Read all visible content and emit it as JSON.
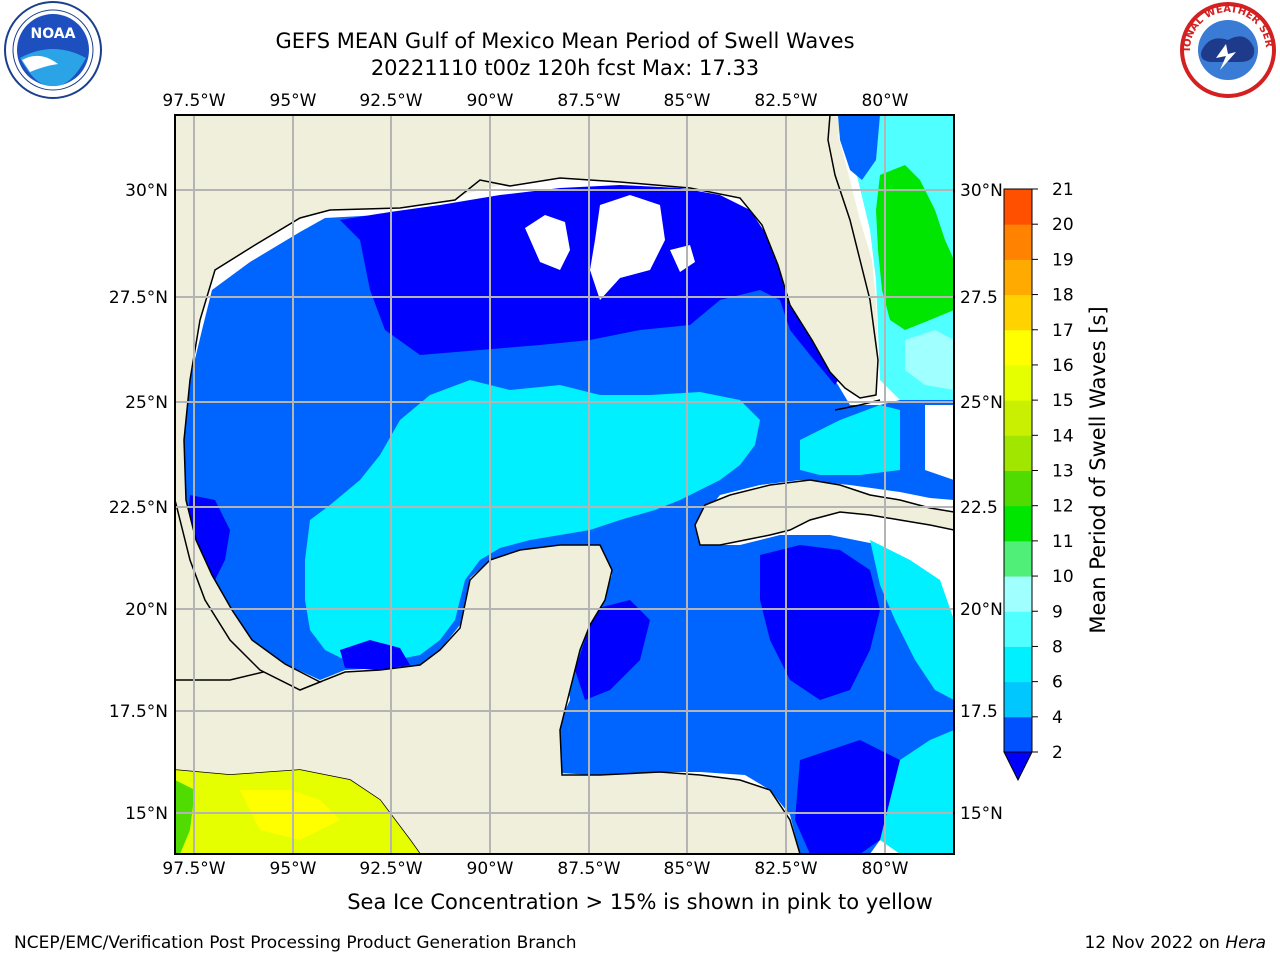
{
  "title": {
    "line1": "GEFS MEAN Gulf of Mexico Mean Period of Swell Waves",
    "line2": "20221110 t00z 120h fcst   Max: 17.33"
  },
  "axes": {
    "lon_labels": [
      "97.5°W",
      "95°W",
      "92.5°W",
      "90°W",
      "87.5°W",
      "85°W",
      "82.5°W",
      "80°W"
    ],
    "lat_labels": [
      "30°N",
      "27.5°N",
      "25°N",
      "22.5°N",
      "20°N",
      "17.5°N",
      "15°N"
    ],
    "lat_labels_right": [
      "30°N",
      "27.5",
      "25°N",
      "22.5",
      "20°N",
      "17.5",
      "15°N"
    ]
  },
  "colorbar": {
    "title": "Mean Period of Swell Waves [s]",
    "ticks": [
      "2",
      "4",
      "6",
      "8",
      "9",
      "10",
      "11",
      "12",
      "13",
      "14",
      "15",
      "16",
      "17",
      "18",
      "19",
      "20",
      "21"
    ],
    "colors": [
      "#0050ff",
      "#00c8ff",
      "#00f0ff",
      "#50ffff",
      "#a0ffff",
      "#50f078",
      "#00e600",
      "#50dc00",
      "#a0e600",
      "#c8f000",
      "#e6ff00",
      "#ffff00",
      "#ffd200",
      "#ffaa00",
      "#ff8200",
      "#ff5000",
      "#ff0000"
    ],
    "under_color": "#0000ff"
  },
  "footnote": "Sea Ice Concentration > 15% is shown in pink to yellow",
  "credit": "NCEP/EMC/Verification Post Processing Product Generation Branch",
  "date": "12 Nov 2022",
  "date_on": " on ",
  "machine": "Hera",
  "logos": {
    "left_text": "NOAA",
    "right_text": "NATIONAL WEATHER SERVICE"
  },
  "colors": {
    "land": "#efefdc",
    "grid": "#b4b4b4"
  }
}
